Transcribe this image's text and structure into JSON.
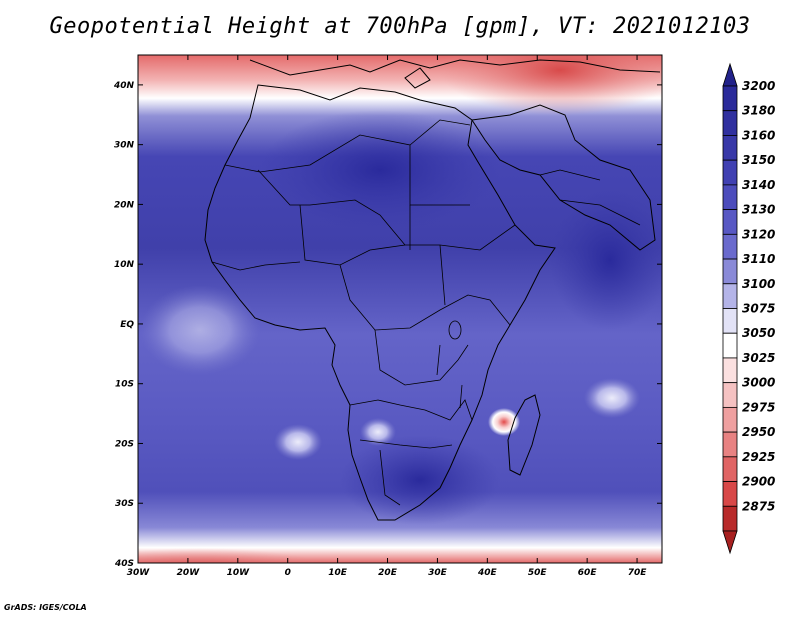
{
  "title": "Geopotential Height at 700hPa [gpm], VT: 2021012103",
  "credit": "GrADS: IGES/COLA",
  "map": {
    "variable": "geopotential height",
    "level": "700hPa",
    "units": "gpm",
    "valid_time": "2021012103",
    "lon_range": [
      -30,
      75
    ],
    "lat_range": [
      -40,
      45
    ],
    "lon_ticks": [
      {
        "value": -30,
        "label": "30W"
      },
      {
        "value": -20,
        "label": "20W"
      },
      {
        "value": -10,
        "label": "10W"
      },
      {
        "value": 0,
        "label": "0"
      },
      {
        "value": 10,
        "label": "10E"
      },
      {
        "value": 20,
        "label": "20E"
      },
      {
        "value": 30,
        "label": "30E"
      },
      {
        "value": 40,
        "label": "40E"
      },
      {
        "value": 50,
        "label": "50E"
      },
      {
        "value": 60,
        "label": "60E"
      },
      {
        "value": 70,
        "label": "70E"
      }
    ],
    "lat_ticks": [
      {
        "value": 40,
        "label": "40N"
      },
      {
        "value": 30,
        "label": "30N"
      },
      {
        "value": 20,
        "label": "20N"
      },
      {
        "value": 10,
        "label": "10N"
      },
      {
        "value": 0,
        "label": "EQ"
      },
      {
        "value": -10,
        "label": "10S"
      },
      {
        "value": -20,
        "label": "20S"
      },
      {
        "value": -30,
        "label": "30S"
      },
      {
        "value": -40,
        "label": "40S"
      }
    ]
  },
  "colorbar": {
    "levels": [
      {
        "label": "3200",
        "color": "#2a2a9a"
      },
      {
        "label": "3180",
        "color": "#30309f"
      },
      {
        "label": "3160",
        "color": "#3838a8"
      },
      {
        "label": "3150",
        "color": "#4040b2"
      },
      {
        "label": "3140",
        "color": "#4c4cbc"
      },
      {
        "label": "3130",
        "color": "#5858c4"
      },
      {
        "label": "3120",
        "color": "#6a6acd"
      },
      {
        "label": "3110",
        "color": "#8a8ad8"
      },
      {
        "label": "3100",
        "color": "#b4b4e8"
      },
      {
        "label": "3075",
        "color": "#e2e2f6"
      },
      {
        "label": "3050",
        "color": "#ffffff"
      },
      {
        "label": "3025",
        "color": "#fbe0e0"
      },
      {
        "label": "3000",
        "color": "#f5c2c2"
      },
      {
        "label": "2975",
        "color": "#efa0a0"
      },
      {
        "label": "2950",
        "color": "#e88282"
      },
      {
        "label": "2925",
        "color": "#e06464"
      },
      {
        "label": "2900",
        "color": "#d84848"
      },
      {
        "label": "2875",
        "color": "#b82a2a"
      }
    ],
    "top_arrow_color": "#22228a",
    "bottom_arrow_color": "#a82020"
  }
}
